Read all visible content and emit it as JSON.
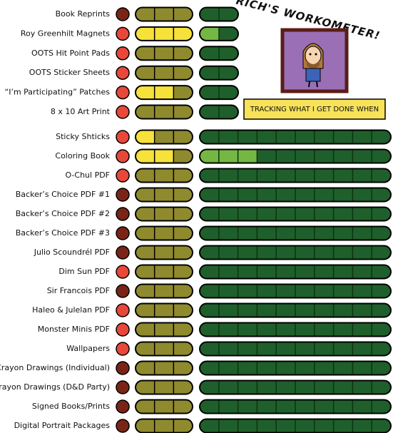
{
  "header": {
    "title": "RICH'S WORKOMETER!",
    "caption": "TRACKING WHAT I GET DONE WHEN"
  },
  "rows": [
    {
      "label": "Book Reprints",
      "status": "dark",
      "yellow": 0,
      "yellow_total": 3,
      "green": 0,
      "green_total": 2
    },
    {
      "label": "Roy Greenhilt Magnets",
      "status": "light",
      "yellow": 3,
      "yellow_total": 3,
      "green": 1,
      "green_total": 2
    },
    {
      "label": "OOTS Hit Point Pads",
      "status": "light",
      "yellow": 0,
      "yellow_total": 3,
      "green": 0,
      "green_total": 2
    },
    {
      "label": "OOTS Sticker Sheets",
      "status": "light",
      "yellow": 0,
      "yellow_total": 3,
      "green": 0,
      "green_total": 2
    },
    {
      "label": "“I’m Participating” Patches",
      "status": "light",
      "yellow": 2,
      "yellow_total": 3,
      "green": 0,
      "green_total": 2
    },
    {
      "label": "8 x 10 Art Print",
      "status": "light",
      "yellow": 0,
      "yellow_total": 3,
      "green": 0,
      "green_total": 2
    },
    {
      "label": "Sticky Shticks",
      "status": "light",
      "yellow": 1,
      "yellow_total": 3,
      "green": 0,
      "green_total": 10
    },
    {
      "label": "Coloring Book",
      "status": "light",
      "yellow": 2,
      "yellow_total": 3,
      "green": 3,
      "green_total": 10
    },
    {
      "label": "O-Chul PDF",
      "status": "light",
      "yellow": 0,
      "yellow_total": 3,
      "green": 0,
      "green_total": 10
    },
    {
      "label": "Backer’s Choice PDF #1",
      "status": "dark",
      "yellow": 0,
      "yellow_total": 3,
      "green": 0,
      "green_total": 10
    },
    {
      "label": "Backer’s Choice PDF #2",
      "status": "dark",
      "yellow": 0,
      "yellow_total": 3,
      "green": 0,
      "green_total": 10
    },
    {
      "label": "Backer’s Choice PDF #3",
      "status": "dark",
      "yellow": 0,
      "yellow_total": 3,
      "green": 0,
      "green_total": 10
    },
    {
      "label": "Julio Scoundrél PDF",
      "status": "dark",
      "yellow": 0,
      "yellow_total": 3,
      "green": 0,
      "green_total": 10
    },
    {
      "label": "Dim Sun PDF",
      "status": "light",
      "yellow": 0,
      "yellow_total": 3,
      "green": 0,
      "green_total": 10
    },
    {
      "label": "Sir Francois  PDF",
      "status": "dark",
      "yellow": 0,
      "yellow_total": 3,
      "green": 0,
      "green_total": 10
    },
    {
      "label": "Haleo & Julelan PDF",
      "status": "light",
      "yellow": 0,
      "yellow_total": 3,
      "green": 0,
      "green_total": 10
    },
    {
      "label": "Monster Minis PDF",
      "status": "light",
      "yellow": 0,
      "yellow_total": 3,
      "green": 0,
      "green_total": 10
    },
    {
      "label": "Wallpapers",
      "status": "light",
      "yellow": 0,
      "yellow_total": 3,
      "green": 0,
      "green_total": 10
    },
    {
      "label": "Crayon Drawings (Individual)",
      "status": "dark",
      "yellow": 0,
      "yellow_total": 3,
      "green": 0,
      "green_total": 10
    },
    {
      "label": "Crayon Drawings (D&D Party)",
      "status": "dark",
      "yellow": 0,
      "yellow_total": 3,
      "green": 0,
      "green_total": 10
    },
    {
      "label": "Signed Books/Prints",
      "status": "dark",
      "yellow": 0,
      "yellow_total": 3,
      "green": 0,
      "green_total": 10
    },
    {
      "label": "Digital Portrait Packages",
      "status": "dark",
      "yellow": 0,
      "yellow_total": 3,
      "green": 0,
      "green_total": 10
    }
  ]
}
